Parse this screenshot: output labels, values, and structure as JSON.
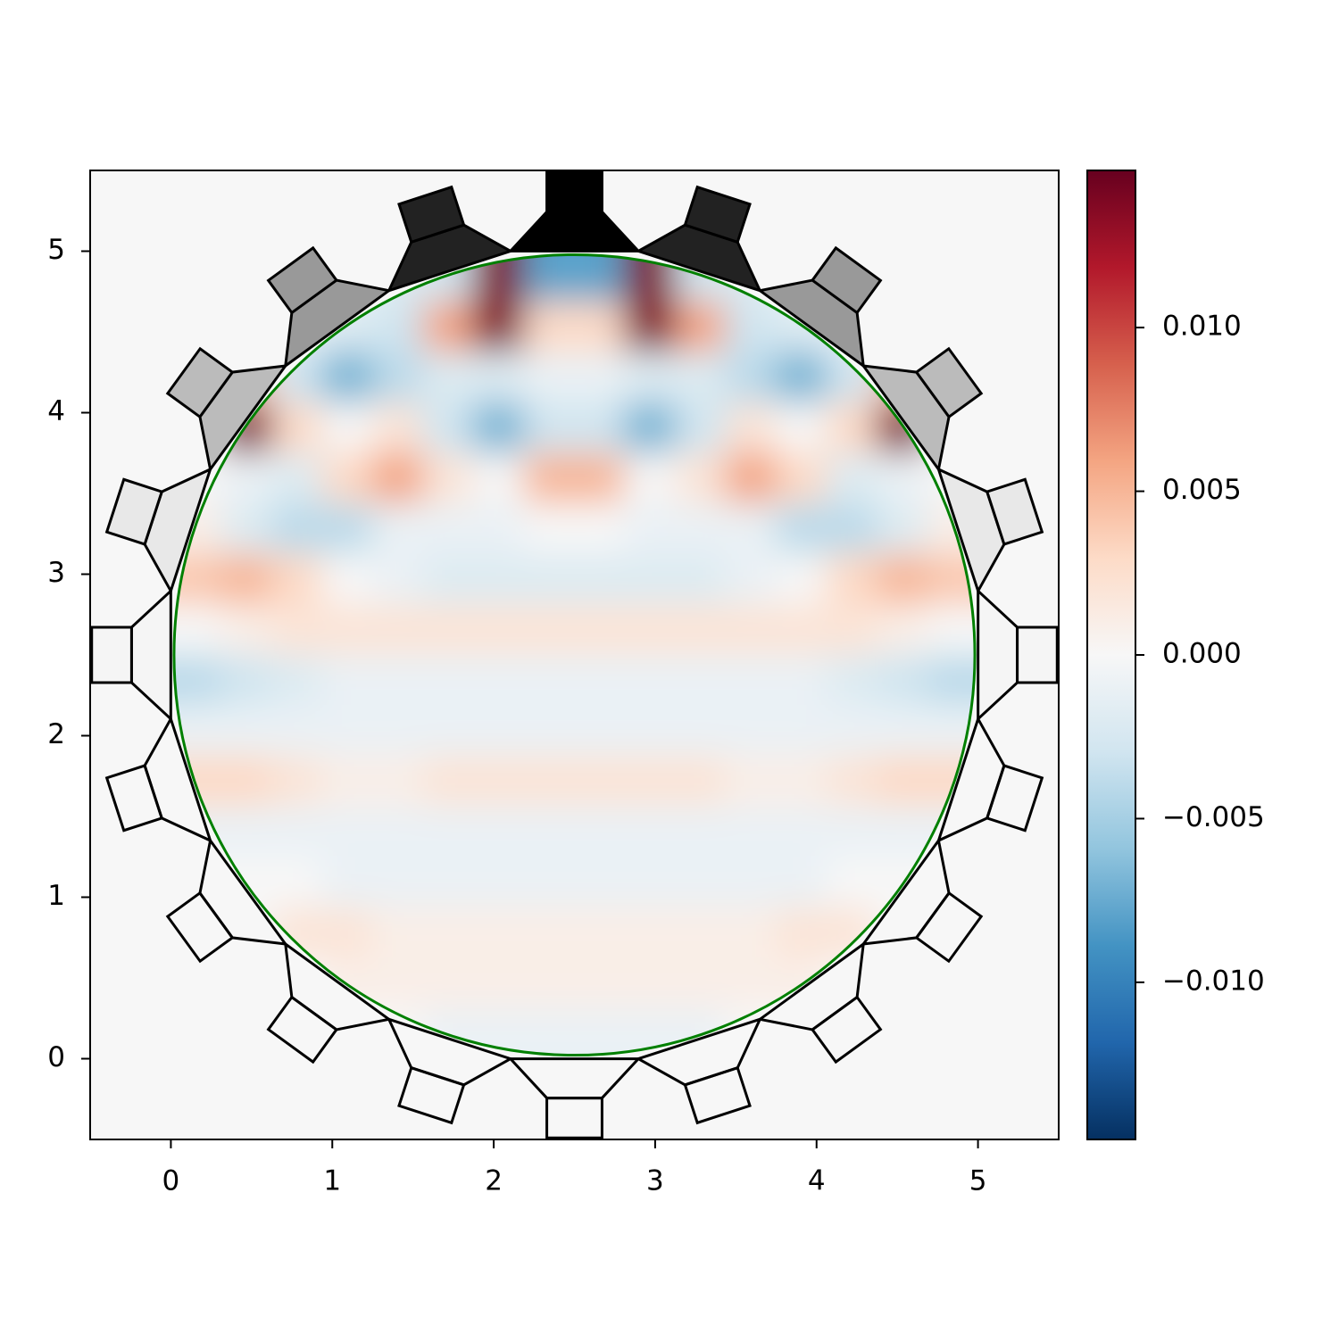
{
  "chart_data": {
    "type": "heatmap",
    "x": [
      0.156,
      0.469,
      0.781,
      1.094,
      1.406,
      1.719,
      2.031,
      2.344,
      2.656,
      2.969,
      3.281,
      3.594,
      3.906,
      4.219,
      4.531,
      4.844
    ],
    "y": [
      4.844,
      4.531,
      4.219,
      3.906,
      3.594,
      3.281,
      2.969,
      2.656,
      2.344,
      2.031,
      1.719,
      1.406,
      1.094,
      0.781,
      0.469,
      0.156
    ],
    "z": [
      [
        0,
        0,
        0,
        0,
        -0.002,
        -0.003,
        0.014,
        -0.008,
        -0.008,
        0.014,
        -0.003,
        -0.002,
        0,
        0,
        0,
        0
      ],
      [
        0,
        0,
        -0.001,
        -0.002,
        -0.003,
        0.006,
        0.014,
        0.003,
        0.003,
        0.014,
        0.006,
        -0.003,
        -0.002,
        -0.001,
        0,
        0
      ],
      [
        0,
        0.004,
        -0.003,
        -0.007,
        -0.004,
        -0.002,
        -0.002,
        -0.001,
        -0.001,
        -0.002,
        -0.002,
        -0.004,
        -0.007,
        -0.003,
        0.004,
        0
      ],
      [
        0,
        0.014,
        0.003,
        0,
        0.002,
        -0.003,
        -0.007,
        -0.003,
        -0.003,
        -0.007,
        -0.003,
        0.002,
        0,
        0.003,
        0.014,
        0
      ],
      [
        0,
        -0.001,
        -0.002,
        0.003,
        0.006,
        0.002,
        0,
        0.005,
        0.005,
        0,
        0.002,
        0.006,
        0.003,
        -0.002,
        -0.001,
        0
      ],
      [
        0.001,
        -0.002,
        -0.004,
        -0.004,
        -0.001,
        -0.001,
        -0.001,
        0,
        0,
        -0.001,
        -0.001,
        -0.001,
        -0.004,
        -0.004,
        -0.002,
        0.001
      ],
      [
        0.004,
        0.005,
        0.003,
        0,
        -0.001,
        -0.002,
        -0.002,
        -0.002,
        -0.002,
        -0.002,
        -0.002,
        -0.001,
        0,
        0.003,
        0.005,
        0.004
      ],
      [
        0,
        0.001,
        0.002,
        0.002,
        0.002,
        0.002,
        0.002,
        0.002,
        0.002,
        0.002,
        0.002,
        0.002,
        0.002,
        0.002,
        0.001,
        0
      ],
      [
        -0.004,
        -0.003,
        -0.002,
        -0.001,
        -0.001,
        -0.001,
        -0.001,
        -0.001,
        -0.001,
        -0.001,
        -0.001,
        -0.001,
        -0.001,
        -0.002,
        -0.003,
        -0.004
      ],
      [
        -0.001,
        -0.001,
        -0.001,
        -0.001,
        -0.001,
        -0.001,
        -0.001,
        -0.001,
        -0.001,
        -0.001,
        -0.001,
        -0.001,
        -0.001,
        -0.001,
        -0.001,
        -0.001
      ],
      [
        0.003,
        0.003,
        0.002,
        0.001,
        0.001,
        0.002,
        0.002,
        0.002,
        0.002,
        0.002,
        0.002,
        0.001,
        0.001,
        0.002,
        0.003,
        0.003
      ],
      [
        -0.001,
        -0.001,
        -0.001,
        -0.001,
        -0.001,
        -0.001,
        -0.001,
        -0.001,
        -0.001,
        -0.001,
        -0.001,
        -0.001,
        -0.001,
        -0.001,
        -0.001,
        -0.001
      ],
      [
        0,
        0,
        0,
        -0.001,
        -0.001,
        -0.001,
        -0.001,
        -0.001,
        -0.001,
        -0.001,
        -0.001,
        -0.001,
        -0.001,
        0,
        0,
        0
      ],
      [
        0,
        0,
        0.002,
        0.002,
        0.001,
        0.001,
        0.001,
        0.001,
        0.001,
        0.001,
        0.001,
        0.001,
        0.002,
        0.002,
        0,
        0
      ],
      [
        0,
        0,
        0,
        0.001,
        0.001,
        0.001,
        0.001,
        0.001,
        0.001,
        0.001,
        0.001,
        0.001,
        0.001,
        0,
        0,
        0
      ],
      [
        0,
        0,
        0,
        0,
        0,
        -0.001,
        -0.001,
        -0.001,
        -0.001,
        -0.001,
        -0.001,
        0,
        0,
        0,
        0,
        0
      ]
    ],
    "xlim": [
      -0.5,
      5.5
    ],
    "ylim": [
      -0.5,
      5.5
    ],
    "xticks": [
      0,
      1,
      2,
      3,
      4,
      5
    ],
    "yticks": [
      0,
      1,
      2,
      3,
      4,
      5
    ],
    "colormap": [
      "#053061",
      "#2166ac",
      "#4393c3",
      "#92c5de",
      "#d1e5f0",
      "#f7f7f7",
      "#fddbc7",
      "#f4a582",
      "#d6604d",
      "#b2182b",
      "#67001f"
    ],
    "colorbar": {
      "lim": [
        -0.0148,
        0.0148
      ],
      "ticks": [
        {
          "value": 0.01,
          "label": "0.010"
        },
        {
          "value": 0.005,
          "label": "0.005"
        },
        {
          "value": 0,
          "label": "0.000"
        },
        {
          "value": -0.005,
          "label": "−0.005"
        },
        {
          "value": -0.01,
          "label": "−0.010"
        }
      ]
    },
    "outline_color": "#008000"
  }
}
